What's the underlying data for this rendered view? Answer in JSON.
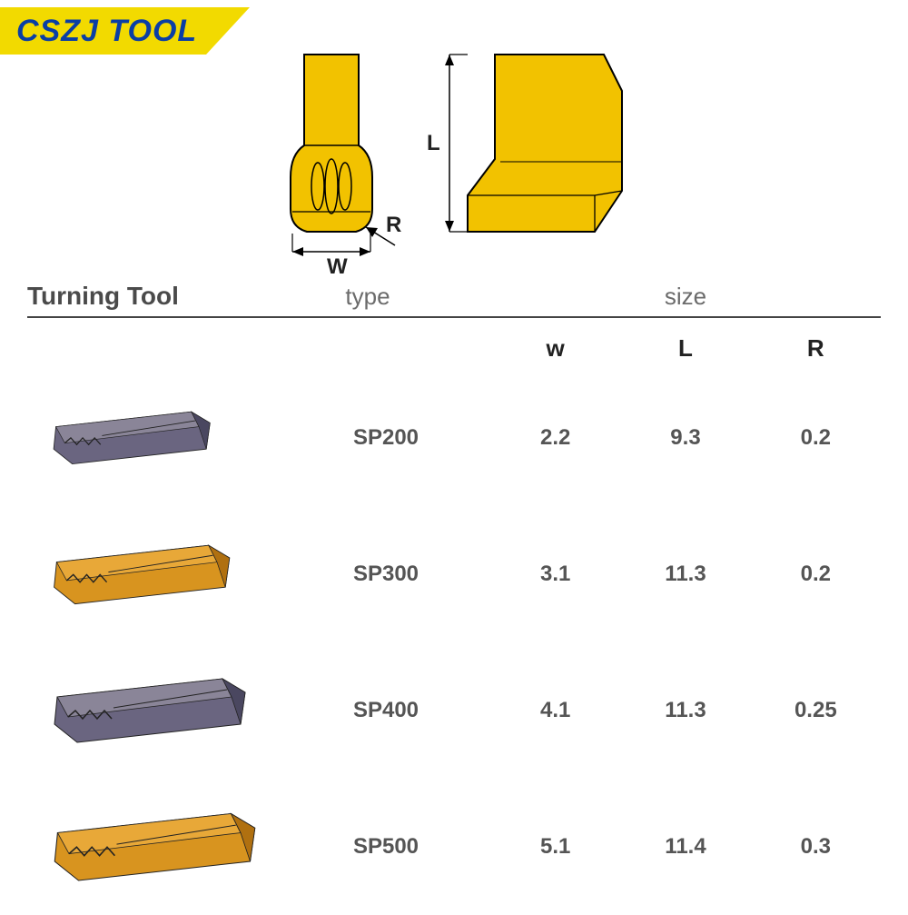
{
  "brand": "CSZJ TOOL",
  "diagram": {
    "label_W": "W",
    "label_L": "L",
    "label_R": "R",
    "front_fill": "#f2c200",
    "front_stroke": "#000000",
    "side_fill": "#f2c200",
    "side_stroke": "#000000",
    "dim_line_color": "#000000"
  },
  "headers": {
    "col1": "Turning Tool",
    "col2": "type",
    "col3": "size",
    "sub_w": "w",
    "sub_l": "L",
    "sub_r": "R"
  },
  "tool_colors": {
    "grey_top": "#8a8598",
    "grey_mid": "#6a6580",
    "grey_dark": "#4a4760",
    "gold_top": "#e8a838",
    "gold_mid": "#d8941f",
    "gold_dark": "#b07010"
  },
  "rows": [
    {
      "type": "SP200",
      "w": "2.2",
      "l": "9.3",
      "r": "0.2",
      "color": "grey",
      "scale": 0.82
    },
    {
      "type": "SP300",
      "w": "3.1",
      "l": "11.3",
      "r": "0.2",
      "color": "gold",
      "scale": 0.92
    },
    {
      "type": "SP400",
      "w": "4.1",
      "l": "11.3",
      "r": "0.25",
      "color": "grey",
      "scale": 1.0
    },
    {
      "type": "SP500",
      "w": "5.1",
      "l": "11.4",
      "r": "0.3",
      "color": "gold",
      "scale": 1.05
    }
  ]
}
